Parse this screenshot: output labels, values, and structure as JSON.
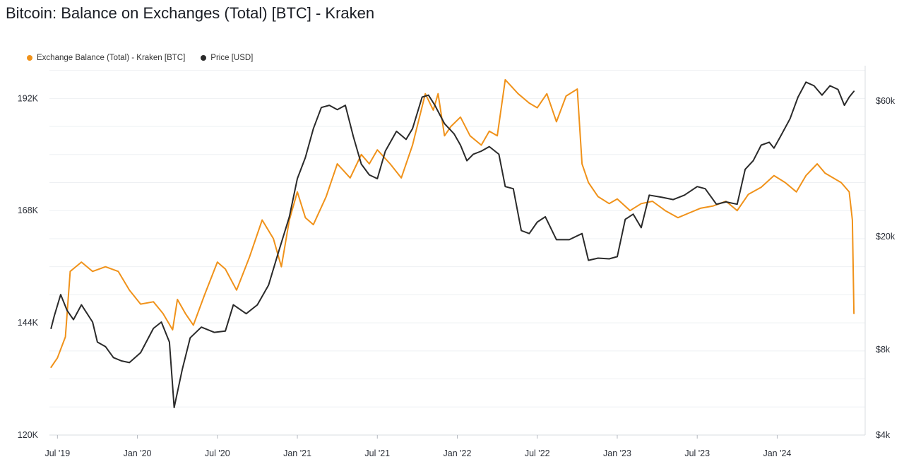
{
  "chart_data": {
    "type": "line",
    "title": "Bitcoin: Balance on Exchanges (Total) [BTC] - Kraken",
    "legend": [
      {
        "label": "Exchange Balance (Total) - Kraken [BTC]",
        "color": "#f0921a"
      },
      {
        "label": "Price [USD]",
        "color": "#2a2a2a"
      }
    ],
    "x_ticks": [
      "Jul '19",
      "Jan '20",
      "Jul '20",
      "Jan '21",
      "Jul '21",
      "Jan '22",
      "Jul '22",
      "Jan '23",
      "Jul '23",
      "Jan '24"
    ],
    "y_left": {
      "ticks": [
        "192K",
        "168K",
        "144K",
        "120K"
      ],
      "tick_values": [
        192000,
        168000,
        144000,
        120000
      ],
      "ylim": [
        120000,
        199000
      ]
    },
    "y_right": {
      "scale": "log",
      "ticks": [
        "$60k",
        "$20k",
        "$8k",
        "$4k"
      ],
      "tick_values": [
        60000,
        20000,
        8000,
        4000
      ],
      "ylim": [
        4000,
        80000
      ]
    },
    "x_range": [
      2019.45,
      2024.55
    ],
    "series": [
      {
        "name": "Exchange Balance (Total) - Kraken [BTC]",
        "axis": "left",
        "color": "#f0921a",
        "points": [
          [
            2019.46,
            134500
          ],
          [
            2019.5,
            136500
          ],
          [
            2019.55,
            141000
          ],
          [
            2019.58,
            155000
          ],
          [
            2019.65,
            157000
          ],
          [
            2019.72,
            155000
          ],
          [
            2019.8,
            156000
          ],
          [
            2019.88,
            155000
          ],
          [
            2019.95,
            151000
          ],
          [
            2020.02,
            148000
          ],
          [
            2020.1,
            148500
          ],
          [
            2020.16,
            146000
          ],
          [
            2020.22,
            142500
          ],
          [
            2020.25,
            149000
          ],
          [
            2020.3,
            146000
          ],
          [
            2020.35,
            143500
          ],
          [
            2020.42,
            150000
          ],
          [
            2020.5,
            157000
          ],
          [
            2020.55,
            155500
          ],
          [
            2020.62,
            151000
          ],
          [
            2020.7,
            158000
          ],
          [
            2020.78,
            166000
          ],
          [
            2020.85,
            162000
          ],
          [
            2020.9,
            156000
          ],
          [
            2020.95,
            166000
          ],
          [
            2021.0,
            172000
          ],
          [
            2021.05,
            166500
          ],
          [
            2021.1,
            165000
          ],
          [
            2021.18,
            171000
          ],
          [
            2021.25,
            178000
          ],
          [
            2021.33,
            175000
          ],
          [
            2021.4,
            180000
          ],
          [
            2021.45,
            178000
          ],
          [
            2021.5,
            181000
          ],
          [
            2021.58,
            178000
          ],
          [
            2021.65,
            175000
          ],
          [
            2021.72,
            182000
          ],
          [
            2021.8,
            193000
          ],
          [
            2021.85,
            189500
          ],
          [
            2021.88,
            193000
          ],
          [
            2021.92,
            184000
          ],
          [
            2021.96,
            186000
          ],
          [
            2022.02,
            188000
          ],
          [
            2022.08,
            184000
          ],
          [
            2022.15,
            182000
          ],
          [
            2022.2,
            185000
          ],
          [
            2022.25,
            184000
          ],
          [
            2022.3,
            196000
          ],
          [
            2022.38,
            193000
          ],
          [
            2022.45,
            191000
          ],
          [
            2022.5,
            190000
          ],
          [
            2022.56,
            193000
          ],
          [
            2022.62,
            187000
          ],
          [
            2022.68,
            192500
          ],
          [
            2022.75,
            194000
          ],
          [
            2022.78,
            178000
          ],
          [
            2022.82,
            174000
          ],
          [
            2022.88,
            171000
          ],
          [
            2022.95,
            169500
          ],
          [
            2023.0,
            170500
          ],
          [
            2023.08,
            168000
          ],
          [
            2023.15,
            169500
          ],
          [
            2023.22,
            170000
          ],
          [
            2023.3,
            168000
          ],
          [
            2023.38,
            166500
          ],
          [
            2023.45,
            167500
          ],
          [
            2023.52,
            168500
          ],
          [
            2023.6,
            169000
          ],
          [
            2023.68,
            170000
          ],
          [
            2023.75,
            168000
          ],
          [
            2023.82,
            171500
          ],
          [
            2023.9,
            173000
          ],
          [
            2023.98,
            175500
          ],
          [
            2024.05,
            174000
          ],
          [
            2024.12,
            172000
          ],
          [
            2024.18,
            175500
          ],
          [
            2024.25,
            178000
          ],
          [
            2024.3,
            176000
          ],
          [
            2024.35,
            175000
          ],
          [
            2024.4,
            174000
          ],
          [
            2024.45,
            172000
          ],
          [
            2024.47,
            166000
          ],
          [
            2024.48,
            146000
          ]
        ]
      },
      {
        "name": "Price [USD]",
        "axis": "right",
        "color": "#2a2a2a",
        "points": [
          [
            2019.46,
            9500
          ],
          [
            2019.48,
            10500
          ],
          [
            2019.52,
            12500
          ],
          [
            2019.56,
            11000
          ],
          [
            2019.6,
            10200
          ],
          [
            2019.65,
            11500
          ],
          [
            2019.72,
            10000
          ],
          [
            2019.75,
            8500
          ],
          [
            2019.8,
            8200
          ],
          [
            2019.85,
            7500
          ],
          [
            2019.9,
            7300
          ],
          [
            2019.95,
            7200
          ],
          [
            2020.02,
            7800
          ],
          [
            2020.1,
            9500
          ],
          [
            2020.15,
            10000
          ],
          [
            2020.2,
            8500
          ],
          [
            2020.23,
            5000
          ],
          [
            2020.28,
            6800
          ],
          [
            2020.33,
            8800
          ],
          [
            2020.4,
            9600
          ],
          [
            2020.48,
            9200
          ],
          [
            2020.55,
            9300
          ],
          [
            2020.6,
            11500
          ],
          [
            2020.68,
            10700
          ],
          [
            2020.75,
            11500
          ],
          [
            2020.82,
            13500
          ],
          [
            2020.88,
            17500
          ],
          [
            2020.95,
            23500
          ],
          [
            2021.0,
            32000
          ],
          [
            2021.05,
            38000
          ],
          [
            2021.1,
            48000
          ],
          [
            2021.15,
            57000
          ],
          [
            2021.2,
            58000
          ],
          [
            2021.25,
            56000
          ],
          [
            2021.3,
            58000
          ],
          [
            2021.35,
            45000
          ],
          [
            2021.4,
            36000
          ],
          [
            2021.45,
            33000
          ],
          [
            2021.5,
            32000
          ],
          [
            2021.55,
            40000
          ],
          [
            2021.62,
            47000
          ],
          [
            2021.68,
            44000
          ],
          [
            2021.72,
            48000
          ],
          [
            2021.78,
            62000
          ],
          [
            2021.82,
            63000
          ],
          [
            2021.86,
            58000
          ],
          [
            2021.92,
            50000
          ],
          [
            2021.98,
            46000
          ],
          [
            2022.02,
            42000
          ],
          [
            2022.06,
            37000
          ],
          [
            2022.1,
            39000
          ],
          [
            2022.15,
            40000
          ],
          [
            2022.2,
            41500
          ],
          [
            2022.26,
            39000
          ],
          [
            2022.3,
            30000
          ],
          [
            2022.35,
            29500
          ],
          [
            2022.4,
            21000
          ],
          [
            2022.45,
            20500
          ],
          [
            2022.5,
            22500
          ],
          [
            2022.55,
            23500
          ],
          [
            2022.62,
            19500
          ],
          [
            2022.7,
            19500
          ],
          [
            2022.78,
            20500
          ],
          [
            2022.82,
            16500
          ],
          [
            2022.88,
            16800
          ],
          [
            2022.95,
            16700
          ],
          [
            2023.0,
            17000
          ],
          [
            2023.05,
            23000
          ],
          [
            2023.1,
            24000
          ],
          [
            2023.15,
            21500
          ],
          [
            2023.2,
            28000
          ],
          [
            2023.28,
            27500
          ],
          [
            2023.35,
            27000
          ],
          [
            2023.42,
            28000
          ],
          [
            2023.5,
            30000
          ],
          [
            2023.55,
            29500
          ],
          [
            2023.62,
            26000
          ],
          [
            2023.68,
            26500
          ],
          [
            2023.75,
            26000
          ],
          [
            2023.8,
            34500
          ],
          [
            2023.85,
            37000
          ],
          [
            2023.9,
            42000
          ],
          [
            2023.95,
            43000
          ],
          [
            2023.98,
            41000
          ],
          [
            2024.02,
            45000
          ],
          [
            2024.08,
            52000
          ],
          [
            2024.13,
            62000
          ],
          [
            2024.18,
            70000
          ],
          [
            2024.23,
            68000
          ],
          [
            2024.28,
            63000
          ],
          [
            2024.33,
            68000
          ],
          [
            2024.38,
            66000
          ],
          [
            2024.42,
            58000
          ],
          [
            2024.45,
            62000
          ],
          [
            2024.48,
            65000
          ]
        ]
      }
    ]
  }
}
